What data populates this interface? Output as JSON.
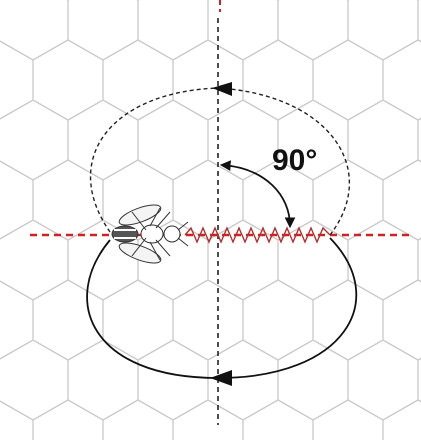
{
  "angle_label": "90°"
}
